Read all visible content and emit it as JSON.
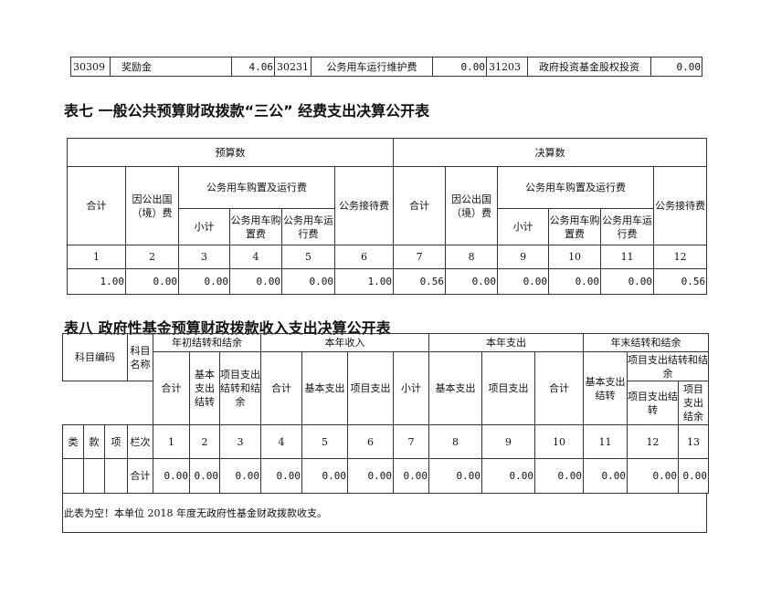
{
  "top_row": {
    "c1": "30309",
    "n1": "奖励金",
    "v1": "4.06",
    "c2": "30231",
    "n2": "公务用车运行维护费",
    "v2": "0.00",
    "c3": "31203",
    "n3": "政府投资基金股权投资",
    "v3": "0.00"
  },
  "table7": {
    "title": "表七 一般公共预算财政拨款“三公” 经费支出决算公开表",
    "budget": "预算数",
    "final": "决算数",
    "total": "合计",
    "abroad": "因公出国（境）费",
    "car": "公务用车购置及运行费",
    "subtotal": "小计",
    "car_buy": "公务用车购置费",
    "car_run": "公务用车运行费",
    "reception": "公务接待费",
    "nums": [
      "1",
      "2",
      "3",
      "4",
      "5",
      "6",
      "7",
      "8",
      "9",
      "10",
      "11",
      "12"
    ],
    "values": [
      "1.00",
      "0.00",
      "0.00",
      "0.00",
      "0.00",
      "1.00",
      "0.56",
      "0.00",
      "0.00",
      "0.00",
      "0.00",
      "0.56"
    ]
  },
  "table8": {
    "title": "表八 政府性基金预算财政拨款收入支出决算公开表",
    "code": "科目编码",
    "name": "科目名称",
    "begin": "年初结转和结余",
    "income": "本年收入",
    "expense": "本年支出",
    "end": "年末结转和结余",
    "h_total": "合计",
    "h_basic_carry": "基本支出结转",
    "h_proj_carry_bal": "项目支出结转和结余",
    "h_basic": "基本支出",
    "h_proj": "项目支出",
    "h_subtotal": "小计",
    "h_proj_carry": "项目支出结转",
    "h_proj_bal": "项目支出结余",
    "lei": "类",
    "kuan": "款",
    "xiang": "项",
    "lanci": "栏次",
    "heji": "合计",
    "nums": [
      "1",
      "2",
      "3",
      "4",
      "5",
      "6",
      "7",
      "8",
      "9",
      "10",
      "11",
      "12",
      "13"
    ],
    "values": [
      "0.00",
      "0.00",
      "0.00",
      "0.00",
      "0.00",
      "0.00",
      "0.00",
      "0.00",
      "0.00",
      "0.00",
      "0.00",
      "0.00",
      "0.00"
    ],
    "note": "此表为空！本单位 2018 年度无政府性基金财政拨款收支。"
  }
}
